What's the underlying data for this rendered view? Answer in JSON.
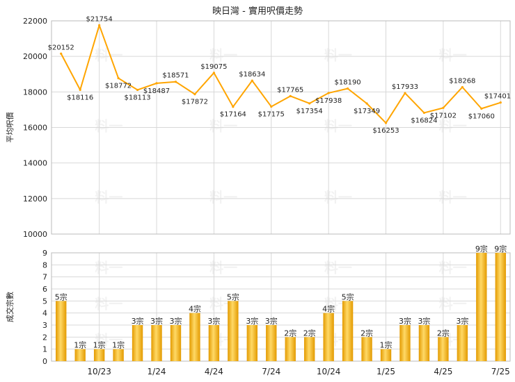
{
  "title": "映日灣 - 實用呎價走勢",
  "watermark": "料一",
  "colors": {
    "line": "#FFA500",
    "bar_fill_dark": "#E39A00",
    "bar_fill_light": "#FFD966",
    "grid": "#D8D8D8",
    "frame": "#BBBBBB",
    "text": "#222222"
  },
  "chart_data": [
    {
      "type": "line",
      "ylabel": "平均呎價",
      "ylim": [
        10000,
        22000
      ],
      "yticks": [
        10000,
        12000,
        14000,
        16000,
        18000,
        20000,
        22000
      ],
      "values": [
        20152,
        18116,
        21754,
        18772,
        18113,
        18487,
        18571,
        17872,
        19075,
        17164,
        18634,
        17175,
        17765,
        17354,
        17938,
        18190,
        17349,
        16253,
        17933,
        16824,
        17102,
        18268,
        17060,
        17401
      ],
      "labels": [
        "$20152",
        "$18116",
        "$21754",
        "$18772",
        "$18113",
        "$18487",
        "$18571",
        "$17872",
        "$19075",
        "$17164",
        "$18634",
        "$17175",
        "$17765",
        "$17354",
        "$17938",
        "$18190",
        "$17349",
        "$16253",
        "$17933",
        "$16824",
        "$17102",
        "$18268",
        "$17060",
        "$17401"
      ],
      "label_visible": [
        true,
        true,
        true,
        true,
        true,
        true,
        true,
        true,
        true,
        true,
        true,
        true,
        true,
        true,
        true,
        true,
        true,
        true,
        true,
        true,
        true,
        true,
        true,
        true
      ],
      "grid": true
    },
    {
      "type": "bar",
      "ylabel": "成交宗數",
      "ylim": [
        0,
        9
      ],
      "yticks": [
        0,
        1,
        2,
        3,
        4,
        5,
        6,
        7,
        8,
        9
      ],
      "values": [
        5,
        1,
        1,
        1,
        3,
        3,
        3,
        4,
        3,
        5,
        3,
        3,
        2,
        2,
        4,
        5,
        2,
        1,
        3,
        3,
        2,
        3,
        9,
        9
      ],
      "labels": [
        "5宗",
        "1宗",
        "1宗",
        "1宗",
        "3宗",
        "3宗",
        "3宗",
        "4宗",
        "3宗",
        "5宗",
        "3宗",
        "3宗",
        "2宗",
        "2宗",
        "4宗",
        "5宗",
        "2宗",
        "1宗",
        "3宗",
        "3宗",
        "2宗",
        "3宗",
        "9宗",
        "9宗"
      ],
      "x_ticks": [
        {
          "index": 2,
          "label": "10/23"
        },
        {
          "index": 5,
          "label": "1/24"
        },
        {
          "index": 8,
          "label": "4/24"
        },
        {
          "index": 11,
          "label": "7/24"
        },
        {
          "index": 14,
          "label": "10/24"
        },
        {
          "index": 17,
          "label": "1/25"
        },
        {
          "index": 20,
          "label": "4/25"
        },
        {
          "index": 23,
          "label": "7/25"
        }
      ],
      "grid": true
    }
  ]
}
